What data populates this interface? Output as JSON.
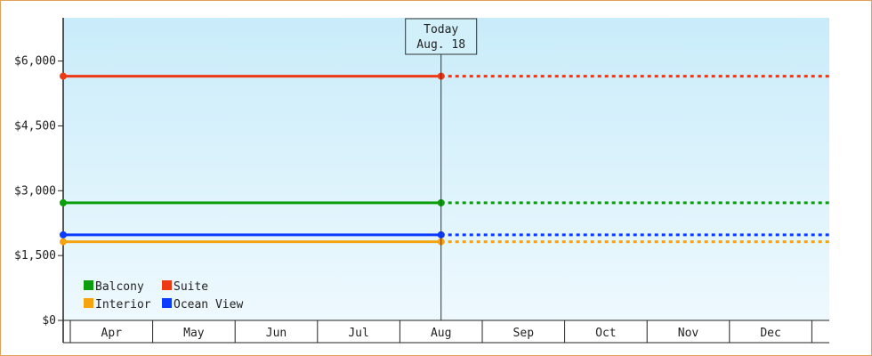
{
  "chart_data": {
    "type": "line",
    "title": "",
    "xlabel": "",
    "ylabel": "",
    "categories": [
      "Apr",
      "May",
      "Jun",
      "Jul",
      "Aug",
      "Sep",
      "Oct",
      "Nov",
      "Dec"
    ],
    "ylim": [
      0,
      7000
    ],
    "yticks": [
      {
        "value": 0,
        "label": "$0"
      },
      {
        "value": 1500,
        "label": "$1,500"
      },
      {
        "value": 3000,
        "label": "$3,000"
      },
      {
        "value": 4500,
        "label": "$4,500"
      },
      {
        "value": 6000,
        "label": "$6,000"
      }
    ],
    "today_marker": {
      "line1": "Today",
      "line2": "Aug. 18",
      "position": "Aug"
    },
    "series": [
      {
        "name": "Suite",
        "color": "#ee3a14",
        "value": 5650
      },
      {
        "name": "Balcony",
        "color": "#0d9e0d",
        "value": 2720
      },
      {
        "name": "Ocean View",
        "color": "#0a3bff",
        "value": 1980
      },
      {
        "name": "Interior",
        "color": "#f5a30e",
        "value": 1820
      }
    ],
    "solid_until": "Aug",
    "dotted_until": "end",
    "legend": [
      {
        "name": "Balcony",
        "color": "#0d9e0d"
      },
      {
        "name": "Suite",
        "color": "#ee3a14"
      },
      {
        "name": "Interior",
        "color": "#f5a30e"
      },
      {
        "name": "Ocean View",
        "color": "#0a3bff"
      }
    ],
    "legend_position": "bottom-left",
    "background": "light blue gradient"
  }
}
